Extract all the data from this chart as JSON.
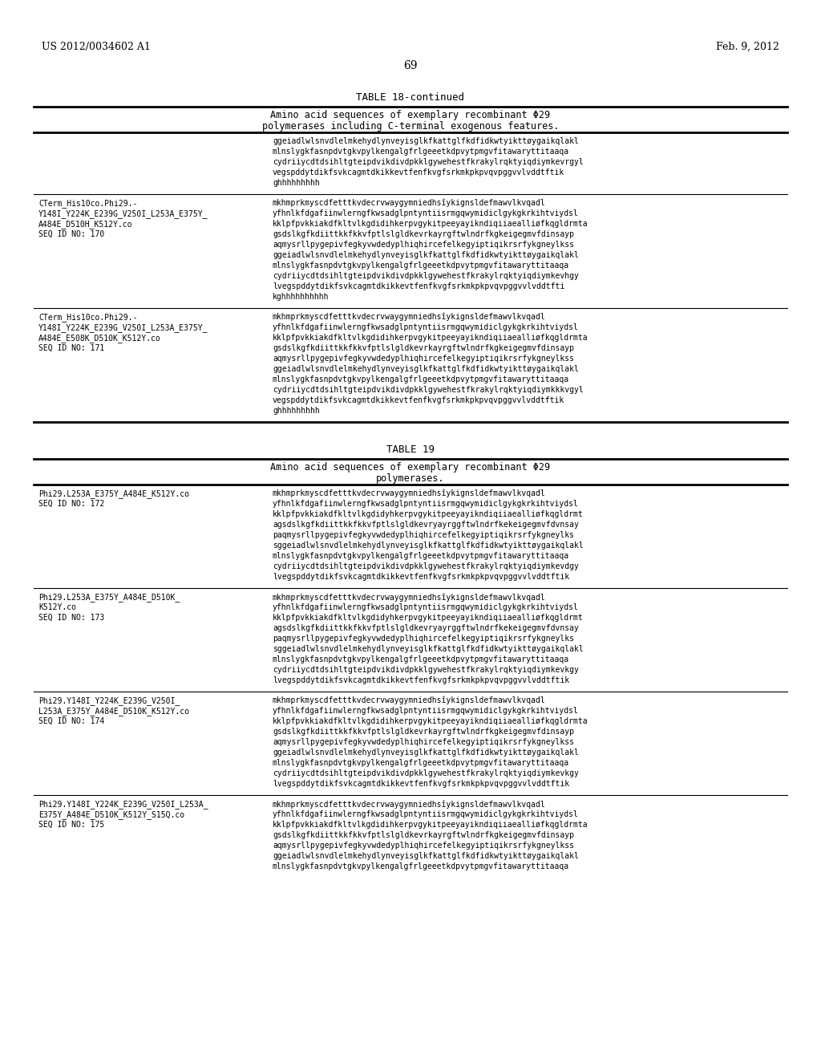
{
  "background_color": "#ffffff",
  "header_left": "US 2012/0034602 A1",
  "header_right": "Feb. 9, 2012",
  "page_number": "69",
  "table18_title": "TABLE 18-continued",
  "table18_subtitle1": "Amino acid sequences of exemplary recombinant Φ29",
  "table18_subtitle2": "polymerases including C-terminal exogenous features.",
  "table18_row0_seq": [
    "ggeiadlwlsnvdlelmkehydlynveyisglkfkattglfkdfidkwtyikttøygaikqlakl",
    "mlnslygkfasnpdvtgkvpylkengalgfrlgeeetkdpvytpmgvfitawaryttitaaqa",
    "cydriiycdtdsihltgteipdvikdivdpkklgywehestfkrakylrqktyiqdiymkevrgyl",
    "vegspddytdikfsvkcagmtdkikkevtfenfkvgfsrkmkpkpvqvpggvvlvddtftik",
    "ghhhhhhhhh"
  ],
  "table18_row1_label": [
    "CTerm_His10co.Phi29.-",
    "Y148I_Y224K_E239G_V250I_L253A_E375Y_",
    "A484E_D510H_K512Y.co",
    "SEQ ID NO: 170"
  ],
  "table18_row1_seq": [
    "mkhmprkmyscdfetttkvdecrvwaygymniedhsîykignsldefmawvlkvqadl",
    "yfhnlkfdgafiinwlerngfkwsadglpntyntiisrmgqwymidiclgykgkrkihtviydsl",
    "kklpfpvkkiakdfkltvlkgdidihkerpvgykitpeeyayikndiqiiaealliøfkqgldrmta",
    "gsdslkgfkdiittkkfkkvfptlslgldkevrkayrgftwlndrfkgkeigegmvfdinsayp",
    "aqmysrllpygepivfegkyvwdedyplhiqhircefelkegyiptiqikrsrfykgneylkss",
    "ggeiadlwlsnvdlelmkehydlynveyisglkfkattglfkdfidkwtyikttøygaikqlakl",
    "mlnslygkfasnpdvtgkvpylkengalgfrlgeeetkdpvytpmgvfitawaryttitaaqa",
    "cydriiycdtdsihltgteipdvikdivdpkklgywehestfkrakylrqktyiqdiymkevhgy",
    "lvegspddytdikfsvkcagmtdkikkevtfenfkvgfsrkmkpkpvqvpggvvlvddtfti",
    "kghhhhhhhhhh"
  ],
  "table18_row2_label": [
    "CTerm_His10co.Phi29.-",
    "Y148I_Y224K_E239G_V250I_L253A_E375Y_",
    "A484E_E508K_D510K_K512Y.co",
    "SEQ ID NO: 171"
  ],
  "table18_row2_seq": [
    "mkhmprkmyscdfetttkvdecrvwaygymniedhsîykignsldefmawvlkvqadl",
    "yfhnlkfdgafiinwlerngfkwsadglpntyntiisrmgqwymidiclgykgkrkihtviydsl",
    "kklpfpvkkiakdfkltvlkgdidihkerpvgykitpeeyayikndiqiiaealliøfkqgldrmta",
    "gsdslkgfkdiittkkfkkvfptlslgldkevrkayrgftwlndrfkgkeigegmvfdinsayp",
    "aqmysrllpygepivfegkyvwdedyplhiqhircefelkegyiptiqikrsrfykgneylkss",
    "ggeiadlwlsnvdlelmkehydlynveyisglkfkattglfkdfidkwtyikttøygaikqlakl",
    "mlnslygkfasnpdvtgkvpylkengalgfrlgeeetkdpvytpmgvfitawaryttitaaqa",
    "cydriiycdtdsihltgteipdvikdivdpkklgywehestfkrakylrqktyiqdiymkkkvgyl",
    "vegspddytdikfsvkcagmtdkikkevtfenfkvgfsrkmkpkpvqvpggvvlvddtftik",
    "ghhhhhhhhh"
  ],
  "table19_title": "TABLE 19",
  "table19_subtitle1": "Amino acid sequences of exemplary recombinant Φ29",
  "table19_subtitle2": "polymerases.",
  "table19_row1_label": [
    "Phi29.L253A_E375Y_A484E_K512Y.co",
    "SEQ ID NO: 172"
  ],
  "table19_row1_seq": [
    "mkhmprkmyscdfetttkvdecrvwaygymniedhsîykignsldefmawvlkvqadl",
    "yfhnlkfdgafiinwlerngfkwsadglpntyntiisrmgqwymidiclgykgkrkihtviydsl",
    "kklpfpvkkiakdfkltvlkgdidyhkerpvgykitpeeyayikndiqiiaealliøfkqgldrmt",
    "agsdslkgfkdiittkkfkkvfptlslgldkevryayrggftwlndrfkekeigegmvfdvnsay",
    "paqmysrllpygepivfegkyvwdedyplhiqhircefelkegyiptiqikrsrfykgneylks",
    "sggeiadlwlsnvdlelmkehydlynveyisglkfkattglfkdfidkwtyikttøygaikqlakl",
    "mlnslygkfasnpdvtgkvpylkengalgfrlgeeetkdpvytpmgvfitawaryttitaaqa",
    "cydriiycdtdsihltgteipdvikdivdpkklgywehestfkrakylrqktyiqdiymkevdgy",
    "lvegspddytdikfsvkcagmtdkikkevtfenfkvgfsrkmkpkpvqvpggvvlvddtftik"
  ],
  "table19_row2_label": [
    "Phi29.L253A_E375Y_A484E_D510K_",
    "K512Y.co",
    "SEQ ID NO: 173"
  ],
  "table19_row2_seq": [
    "mkhmprkmyscdfetttkvdecrvwaygymniedhsîykignsldefmawvlkvqadl",
    "yfhnlkfdgafiinwlerngfkwsadglpntyntiisrmgqwymidiclgykgkrkihtviydsl",
    "kklpfpvkkiakdfkltvlkgdidyhkerpvgykitpeeyayikndiqiiaealliøfkqgldrmt",
    "agsdslkgfkdiittkkfkkvfptlslgldkevryayrggftwlndrfkekeigegmvfdvnsay",
    "paqmysrllpygepivfegkyvwdedyplhiqhircefelkegyiptiqikrsrfykgneylks",
    "sggeiadlwlsnvdlelmkehydlynveyisglkfkattglfkdfidkwtyikttøygaikqlakl",
    "mlnslygkfasnpdvtgkvpylkengalgfrlgeeetkdpvytpmgvfitawaryttitaaqa",
    "cydriiycdtdsihltgteipdvikdivdpkklgywehestfkrakylrqktyiqdiymkevkgy",
    "lvegspddytdikfsvkcagmtdkikkevtfenfkvgfsrkmkpkpvqvpggvvlvddtftik"
  ],
  "table19_row3_label": [
    "Phi29.Y148I_Y224K_E239G_V250I_",
    "L253A_E375Y_A484E_D510K_K512Y.co",
    "SEQ ID NO: 174"
  ],
  "table19_row3_seq": [
    "mkhmprkmyscdfetttkvdecrvwaygymniedhsîykignsldefmawvlkvqadl",
    "yfhnlkfdgafiinwlerngfkwsadglpntyntiisrmgqwymidiclgykgkrkihtviydsl",
    "kklpfpvkkiakdfkltvlkgdidihkerpvgykitpeeyayikndiqiiaealliøfkqgldrmta",
    "gsdslkgfkdiittkkfkkvfptlslgldkevrkayrgftwlndrfkgkeigegmvfdinsayp",
    "aqmysrllpygepivfegkyvwdedyplhiqhircefelkegyiptiqikrsrfykgneylkss",
    "ggeiadlwlsnvdlelmkehydlynveyisglkfkattglfkdfidkwtyikttøygaikqlakl",
    "mlnslygkfasnpdvtgkvpylkengalgfrlgeeetkdpvytpmgvfitawaryttitaaqa",
    "cydriiycdtdsihltgteipdvikdivdpkklgywehestfkrakylrqktyiqdiymkevkgy",
    "lvegspddytdikfsvkcagmtdkikkevtfenfkvgfsrkmkpkpvqvpggvvlvddtftik"
  ],
  "table19_row4_label": [
    "Phi29.Y148I_Y224K_E239G_V250I_L253A_",
    "E375Y_A484E_D510K_K512Y_S15Q.co",
    "SEQ ID NO: 175"
  ],
  "table19_row4_seq": [
    "mkhmprkmyscdfetttkvdecrvwaygymniedhsîykignsldefmawvlkvqadl",
    "yfhnlkfdgafiinwlerngfkwsadglpntyntiisrmgqwymidiclgykgkrkihtviydsl",
    "kklpfpvkkiakdfkltvlkgdidihkerpvgykitpeeyayikndiqiiaealliøfkqgldrmta",
    "gsdslkgfkdiittkkfkkvfptlslgldkevrkayrgftwlndrfkgkeigegmvfdinsayp",
    "aqmysrllpygepivfegkyvwdedyplhiqhircefelkegyiptiqikrsrfykgneylkss",
    "ggeiadlwlsnvdlelmkehydlynveyisglkfkattglfkdfidkwtyikttøygaikqlakl",
    "mlnslygkfasnpdvtgkvpylkengalgfrlgeeetkdpvytpmgvfitawaryttitaaqa"
  ]
}
